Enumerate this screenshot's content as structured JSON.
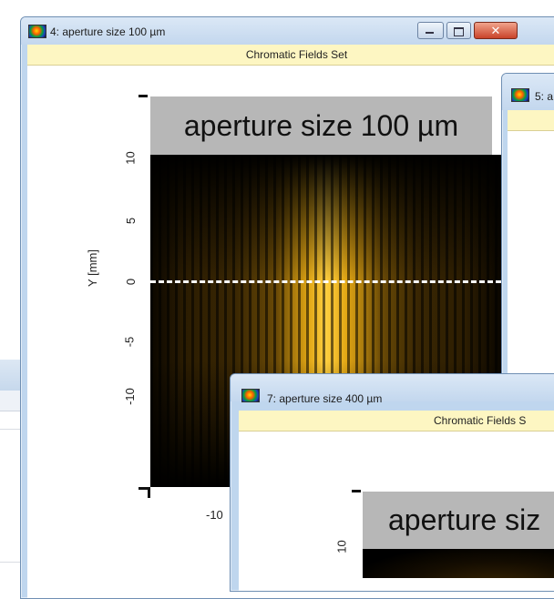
{
  "win4": {
    "title": "4: aperture size 100 µm",
    "subtitle": "Chromatic Fields Set",
    "banner": "aperture size 100 µm",
    "y_label": "Y [mm]",
    "y_ticks": [
      "10",
      "5",
      "0",
      "-5",
      "-10"
    ],
    "x_ticks": [
      "-10"
    ]
  },
  "win5": {
    "title": "5: a"
  },
  "win7": {
    "title": "7: aperture size 400 µm",
    "subtitle": "Chromatic Fields S",
    "banner": "aperture siz",
    "y_ticks": [
      "10"
    ]
  },
  "colors": {
    "title_bar": "#c3d7ee",
    "subbar": "#fdf6c2",
    "close_button": "#c9432a",
    "beam": "#ffd040"
  }
}
